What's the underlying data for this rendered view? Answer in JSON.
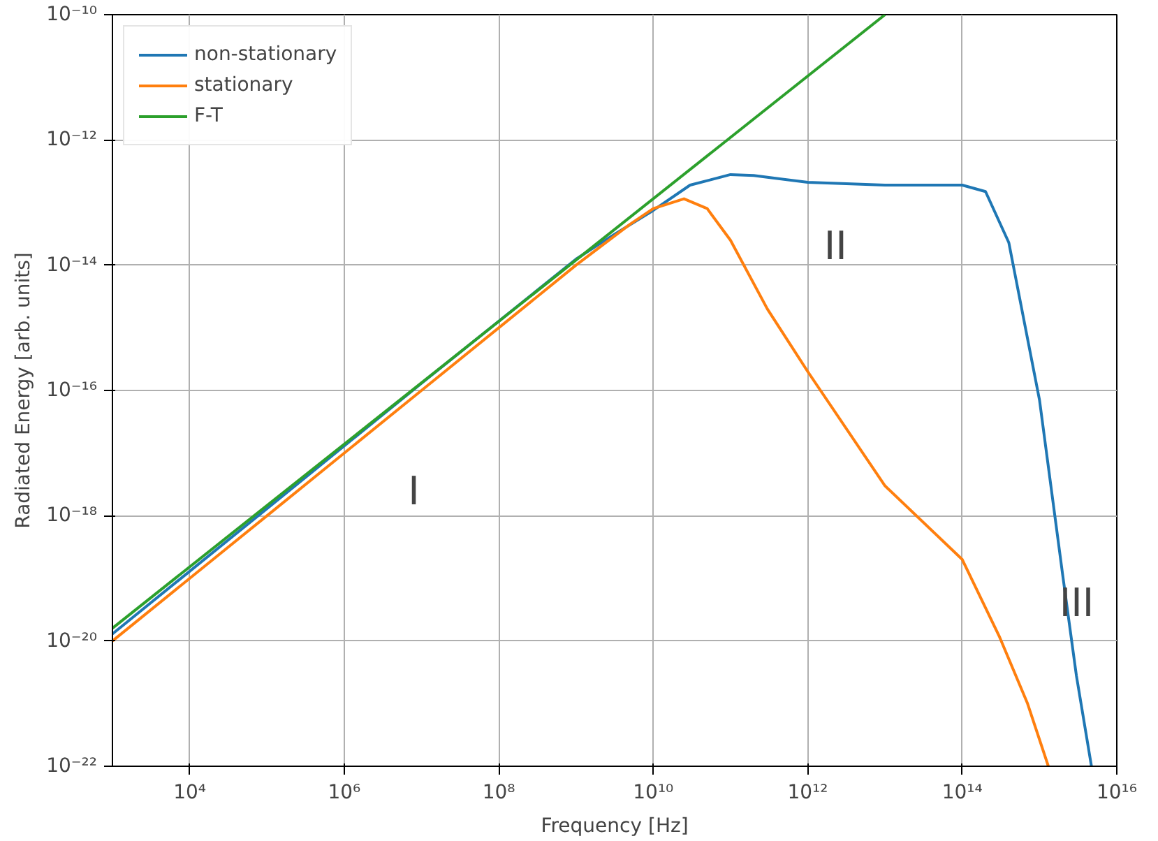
{
  "chart_data": {
    "type": "line",
    "xlabel": "Frequency [Hz]",
    "ylabel": "Radiated Energy [arb. units]",
    "log": "xy",
    "grid": true,
    "legend": "top left",
    "line_style": "solid",
    "marker": "none",
    "xlim": [
      1000.0,
      1e+16
    ],
    "ylim": [
      1e-22,
      1e-10
    ],
    "xticks": [
      {
        "value": 10000.0,
        "label": "10⁴"
      },
      {
        "value": 1000000.0,
        "label": "10⁶"
      },
      {
        "value": 100000000.0,
        "label": "10⁸"
      },
      {
        "value": 10000000000.0,
        "label": "10¹⁰"
      },
      {
        "value": 1000000000000.0,
        "label": "10¹²"
      },
      {
        "value": 100000000000000.0,
        "label": "10¹⁴"
      },
      {
        "value": 1e+16,
        "label": "10¹⁶"
      }
    ],
    "yticks": [
      {
        "value": 1e-22,
        "label": "10⁻²²"
      },
      {
        "value": 1e-20,
        "label": "10⁻²⁰"
      },
      {
        "value": 1e-18,
        "label": "10⁻¹⁸"
      },
      {
        "value": 1e-16,
        "label": "10⁻¹⁶"
      },
      {
        "value": 1e-14,
        "label": "10⁻¹⁴"
      },
      {
        "value": 1e-12,
        "label": "10⁻¹²"
      },
      {
        "value": 1e-10,
        "label": "10⁻¹⁰"
      }
    ],
    "series": [
      {
        "name": "non-stationary",
        "color": "#1f77b4",
        "x": [
          1000.0,
          100000.0,
          10000000.0,
          1000000000.0,
          3000000000.0,
          10000000000.0,
          30000000000.0,
          100000000000.0,
          200000000000.0,
          1000000000000.0,
          10000000000000.0,
          100000000000000.0,
          200000000000000.0,
          400000000000000.0,
          1000000000000000.0,
          2000000000000000.0,
          3000000000000000.0,
          4700000000000000.0
        ],
        "values": [
          1.3e-20,
          1.3e-18,
          1.3e-16,
          1.25e-14,
          3e-14,
          7.5e-14,
          1.9e-13,
          2.8e-13,
          2.7e-13,
          2.1e-13,
          1.9e-13,
          1.9e-13,
          1.5e-13,
          2.3e-14,
          7e-17,
          1.1e-19,
          2.8e-21,
          1e-22
        ]
      },
      {
        "name": "stationary",
        "color": "#ff7f0e",
        "x": [
          1000.0,
          100000.0,
          10000000.0,
          1000000000.0,
          5000000000.0,
          10000000000.0,
          25000000000.0,
          50000000000.0,
          100000000000.0,
          300000000000.0,
          1000000000000.0,
          10000000000000.0,
          100000000000000.0,
          300000000000000.0,
          700000000000000.0,
          1300000000000000.0
        ],
        "values": [
          1e-20,
          1e-18,
          1e-16,
          1e-14,
          4.5e-14,
          8e-14,
          1.15e-13,
          8e-14,
          2.5e-14,
          2e-15,
          2e-16,
          3e-18,
          2e-19,
          1.2e-20,
          1e-21,
          1e-22
        ]
      },
      {
        "name": "F-T",
        "color": "#2ca02c",
        "x": [
          1000.0,
          10000000000000.0
        ],
        "values": [
          1.6e-20,
          1e-10
        ]
      }
    ],
    "annotations": [
      "I",
      "II",
      "III"
    ]
  }
}
